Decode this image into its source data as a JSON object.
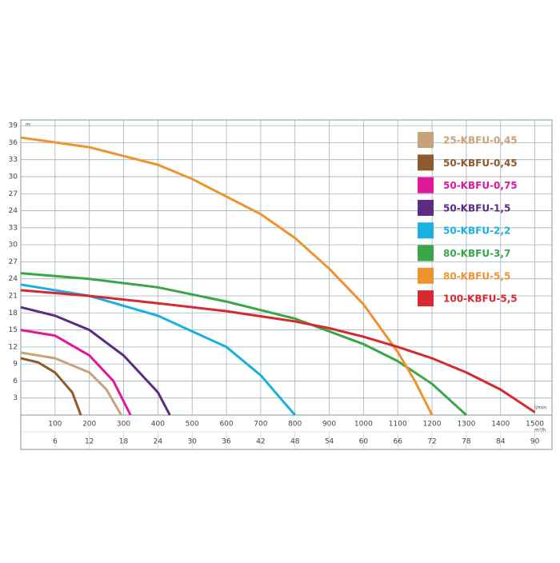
{
  "chart_data": {
    "type": "line",
    "units": {
      "y": "m",
      "x": "l/min",
      "x2": "m³/h"
    },
    "xlim": [
      0,
      1550
    ],
    "xticks": [
      100,
      200,
      300,
      400,
      500,
      600,
      700,
      800,
      900,
      1000,
      1100,
      1200,
      1300,
      1400,
      1500
    ],
    "x2lim": [
      0,
      93
    ],
    "x2ticks": [
      6,
      12,
      18,
      24,
      30,
      36,
      42,
      48,
      54,
      60,
      66,
      72,
      78,
      84,
      90
    ],
    "ylim": [
      0,
      52
    ],
    "yticks": [
      3,
      6,
      9,
      12,
      15,
      18,
      21,
      24,
      27,
      30,
      33,
      {
        "value": 36,
        "label": "24"
      },
      {
        "value": 39,
        "label": "27"
      },
      {
        "value": 42,
        "label": "30"
      },
      {
        "value": 45,
        "label": "33"
      },
      {
        "value": 48,
        "label": "36"
      },
      {
        "value": 51,
        "label": "39"
      }
    ],
    "grid": true,
    "legend": "upper right",
    "series": [
      {
        "name": "25-KBFU-0,45",
        "color": "#c9a27b",
        "x": [
          0,
          100,
          200,
          250,
          293
        ],
        "values": [
          11,
          10,
          7.5,
          4.5,
          0
        ]
      },
      {
        "name": "50-KBFU-0,45",
        "color": "#8e5a2e",
        "x": [
          0,
          50,
          100,
          150,
          175
        ],
        "values": [
          10,
          9.3,
          7.5,
          4,
          0
        ]
      },
      {
        "name": "50-KBFU-0,75",
        "color": "#e0189a",
        "x": [
          0,
          100,
          200,
          270,
          320
        ],
        "values": [
          15,
          14,
          10.5,
          6,
          0
        ]
      },
      {
        "name": "50-KBFU-1,5",
        "color": "#5b2c83",
        "x": [
          0,
          100,
          200,
          300,
          400,
          435
        ],
        "values": [
          19,
          17.5,
          15,
          10.5,
          4,
          0
        ]
      },
      {
        "name": "50-KBFU-2,2",
        "color": "#1ab0e0",
        "x": [
          0,
          200,
          400,
          600,
          700,
          800
        ],
        "values": [
          23,
          21,
          17.5,
          12,
          7,
          0
        ]
      },
      {
        "name": "80-KBFU-3,7",
        "color": "#3aa648",
        "x": [
          0,
          200,
          400,
          600,
          800,
          1000,
          1100,
          1200,
          1300
        ],
        "values": [
          25,
          24,
          22.5,
          20,
          17,
          12.5,
          9.5,
          5.5,
          0
        ]
      },
      {
        "name": "80-KBFU-5,5",
        "color": "#f0922e",
        "x": [
          0,
          200,
          400,
          500,
          600,
          700,
          800,
          900,
          1000,
          1100,
          1150,
          1200
        ],
        "values": [
          48.9,
          47.2,
          44.1,
          41.6,
          38.5,
          35.4,
          31.2,
          25.8,
          19.5,
          11.1,
          6,
          0
        ]
      },
      {
        "name": "100-KBFU-5,5",
        "color": "#d42a30",
        "x": [
          0,
          200,
          400,
          600,
          800,
          900,
          1000,
          1100,
          1200,
          1300,
          1400,
          1500
        ],
        "values": [
          22,
          21,
          19.7,
          18.3,
          16.5,
          15.3,
          13.8,
          12,
          10,
          7.5,
          4.5,
          0.5
        ]
      }
    ]
  }
}
